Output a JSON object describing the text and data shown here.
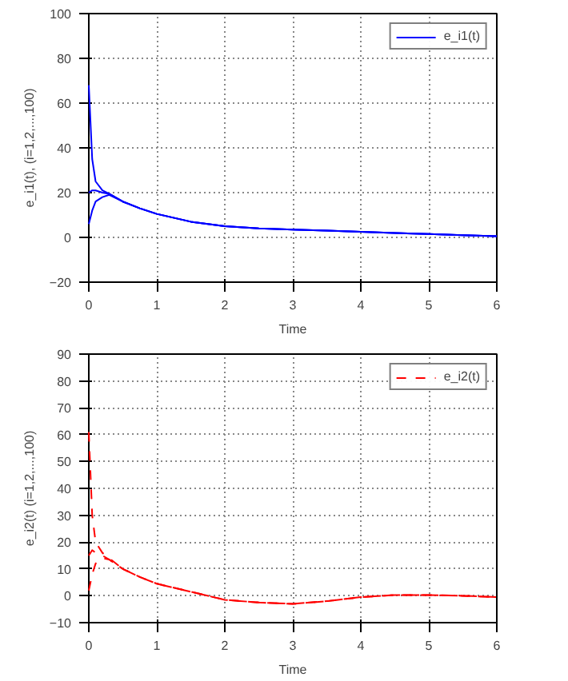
{
  "chart_data": [
    {
      "type": "line",
      "xlabel": "Time",
      "ylabel": "e_i1(t), (i=1,2,...,100)",
      "x": [
        0,
        0.05,
        0.1,
        0.2,
        0.3,
        0.5,
        0.75,
        1,
        1.5,
        2,
        2.5,
        3,
        3.5,
        4,
        4.5,
        5,
        5.5,
        6
      ],
      "series": [
        {
          "name": "e_i1(t)",
          "color": "#0000ff",
          "values": [
            68,
            35,
            25,
            21,
            19.5,
            16,
            13,
            10.5,
            7,
            5,
            4,
            3.5,
            3,
            2.5,
            2,
            1.5,
            1,
            0.5
          ]
        },
        {
          "color": "#0000ff",
          "values": [
            20,
            21,
            21,
            20,
            19.5,
            16,
            13,
            10.5,
            7,
            5,
            4,
            3.5,
            3,
            2.5,
            2,
            1.5,
            1,
            0.5
          ]
        },
        {
          "color": "#0000ff",
          "values": [
            6,
            12,
            16,
            18,
            19,
            16,
            13,
            10.5,
            7,
            5,
            4,
            3.5,
            3,
            2.5,
            2,
            1.5,
            1,
            0.5
          ]
        }
      ],
      "xlim": [
        0,
        6
      ],
      "xticks": [
        0,
        1,
        2,
        3,
        4,
        5,
        6
      ],
      "ylim": [
        -20,
        100
      ],
      "yticks": [
        -20,
        0,
        20,
        40,
        60,
        80,
        100
      ],
      "grid": true,
      "legend": "top right",
      "line_style": "solid"
    },
    {
      "type": "line",
      "xlabel": "Time",
      "ylabel": "e_i2(t) (i=1,2,...,100)",
      "x": [
        0,
        0.05,
        0.1,
        0.2,
        0.3,
        0.5,
        0.75,
        1,
        1.5,
        2,
        2.5,
        3,
        3.5,
        4,
        4.5,
        5,
        5.5,
        6
      ],
      "series": [
        {
          "name": "e_i2(t)",
          "color": "#ff0000",
          "values": [
            61,
            30,
            20,
            16,
            14,
            10,
            7,
            4.5,
            1.5,
            -1.5,
            -2.5,
            -3,
            -2,
            -0.5,
            0.3,
            0.3,
            0,
            -0.5
          ]
        },
        {
          "color": "#ff0000",
          "values": [
            15,
            17,
            16,
            15,
            13.5,
            10,
            7,
            4.5,
            1.5,
            -1.5,
            -2.5,
            -3,
            -2,
            -0.5,
            0.3,
            0.3,
            0,
            -0.5
          ]
        },
        {
          "color": "#ff0000",
          "values": [
            2,
            8,
            12,
            14,
            13.5,
            10,
            7,
            4.5,
            1.5,
            -1.5,
            -2.5,
            -3,
            -2,
            -0.5,
            0.3,
            0.3,
            0,
            -0.5
          ]
        }
      ],
      "xlim": [
        0,
        6
      ],
      "xticks": [
        0,
        1,
        2,
        3,
        4,
        5,
        6
      ],
      "ylim": [
        -10,
        90
      ],
      "yticks": [
        -10,
        0,
        10,
        20,
        30,
        40,
        50,
        60,
        70,
        80,
        90
      ],
      "grid": true,
      "legend": "top right",
      "line_style": "dashed"
    }
  ]
}
